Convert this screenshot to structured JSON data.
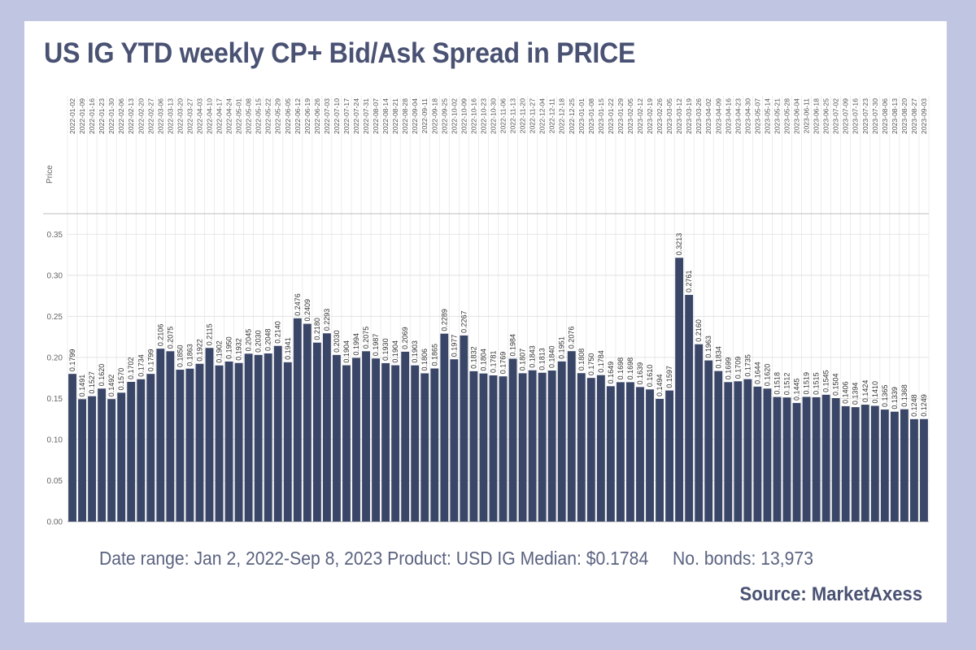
{
  "title": "US IG YTD weekly CP+ Bid/Ask Spread in PRICE",
  "footer": {
    "date_range": "Date range: Jan 2, 2022-Sep 8, 2023",
    "product": "Product: USD IG",
    "median": "Median: $0.1784",
    "bonds": "No. bonds: 13,973"
  },
  "source": "Source: MarketAxess",
  "colors": {
    "bar": "#3a4668",
    "background": "#c0c6e2",
    "title": "#4a5273"
  },
  "chart_data": {
    "type": "bar",
    "ylabel": "Price",
    "ylim": [
      0,
      0.375
    ],
    "yticks": [
      "0.00",
      "0.05",
      "0.10",
      "0.15",
      "0.20",
      "0.25",
      "0.30",
      "0.35"
    ],
    "grid": true,
    "categories": [
      "2022-01-02",
      "2022-01-09",
      "2022-01-16",
      "2022-01-23",
      "2022-01-30",
      "2022-02-06",
      "2022-02-13",
      "2022-02-20",
      "2022-02-27",
      "2022-03-06",
      "2022-03-13",
      "2022-03-20",
      "2022-03-27",
      "2022-04-03",
      "2022-04-10",
      "2022-04-17",
      "2022-04-24",
      "2022-05-01",
      "2022-05-08",
      "2022-05-15",
      "2022-05-22",
      "2022-05-29",
      "2022-06-05",
      "2022-06-12",
      "2022-06-19",
      "2022-06-26",
      "2022-07-03",
      "2022-07-10",
      "2022-07-17",
      "2022-07-24",
      "2022-07-31",
      "2022-08-07",
      "2022-08-14",
      "2022-08-21",
      "2022-08-28",
      "2022-09-04",
      "2022-09-11",
      "2022-09-18",
      "2022-09-25",
      "2022-10-02",
      "2022-10-09",
      "2022-10-16",
      "2022-10-23",
      "2022-10-30",
      "2022-11-06",
      "2022-11-13",
      "2022-11-20",
      "2022-11-27",
      "2022-12-04",
      "2022-12-11",
      "2022-12-18",
      "2022-12-25",
      "2023-01-01",
      "2023-01-08",
      "2023-01-15",
      "2023-01-22",
      "2023-01-29",
      "2023-02-05",
      "2023-02-12",
      "2023-02-19",
      "2023-02-26",
      "2023-03-05",
      "2023-03-12",
      "2023-03-19",
      "2023-03-26",
      "2023-04-02",
      "2023-04-09",
      "2023-04-16",
      "2023-04-23",
      "2023-04-30",
      "2023-05-07",
      "2023-05-14",
      "2023-05-21",
      "2023-05-28",
      "2023-06-04",
      "2023-06-11",
      "2023-06-18",
      "2023-06-25",
      "2023-07-02",
      "2023-07-09",
      "2023-07-16",
      "2023-07-23",
      "2023-07-30",
      "2023-08-06",
      "2023-08-13",
      "2023-08-20",
      "2023-08-27",
      "2023-09-03"
    ],
    "values": [
      0.1799,
      0.1491,
      0.1527,
      0.162,
      0.1492,
      0.157,
      0.1702,
      0.1734,
      0.1799,
      0.2106,
      0.2075,
      0.185,
      0.1863,
      0.1922,
      0.2115,
      0.1902,
      0.195,
      0.1932,
      0.2045,
      0.203,
      0.2048,
      0.214,
      0.1941,
      0.2476,
      0.2409,
      0.218,
      0.2293,
      0.203,
      0.1904,
      0.1994,
      0.2075,
      0.1987,
      0.193,
      0.1904,
      0.2069,
      0.1903,
      0.1806,
      0.1865,
      0.2289,
      0.1977,
      0.2267,
      0.1832,
      0.1804,
      0.1781,
      0.1769,
      0.1984,
      0.1807,
      0.1843,
      0.1813,
      0.184,
      0.1951,
      0.2076,
      0.1808,
      0.175,
      0.1784,
      0.1649,
      0.1698,
      0.1698,
      0.1639,
      0.161,
      0.1494,
      0.1597,
      0.3213,
      0.2761,
      0.216,
      0.1963,
      0.1834,
      0.1699,
      0.1709,
      0.1735,
      0.1644,
      0.162,
      0.1518,
      0.1512,
      0.1445,
      0.1519,
      0.1515,
      0.1545,
      0.1504,
      0.1406,
      0.1394,
      0.1424,
      0.141,
      0.1365,
      0.1339,
      0.1368,
      0.1248,
      0.1249
    ],
    "value_labels": [
      "0.1799",
      "0.1491",
      "0.1527",
      "0.1620",
      "0.1492",
      "0.1570",
      "0.1702",
      "0.1734",
      "0.1799",
      "0.2106",
      "0.2075",
      "0.1850",
      "0.1863",
      "0.1922",
      "0.2115",
      "0.1902",
      "0.1950",
      "0.1932",
      "0.2045",
      "0.2030",
      "0.2048",
      "0.2140",
      "0.1941",
      "0.2476",
      "0.2409",
      "0.2180",
      "0.2293",
      "0.2030",
      "0.1904",
      "0.1994",
      "0.2075",
      "0.1987",
      "0.1930",
      "0.1904",
      "0.2069",
      "0.1903",
      "0.1806",
      "0.1865",
      "0.2289",
      "0.1977",
      "0.2267",
      "0.1832",
      "0.1804",
      "0.1781",
      "0.1769",
      "0.1984",
      "0.1807",
      "0.1843",
      "0.1813",
      "0.1840",
      "0.1951",
      "0.2076",
      "0.1808",
      "0.1750",
      "0.1784",
      "0.1649",
      "0.1698",
      "0.1698",
      "0.1639",
      "0.1610",
      "0.1494",
      "0.1597",
      "0.3213",
      "0.2761",
      "0.2160",
      "0.1963",
      "0.1834",
      "0.1699",
      "0.1709",
      "0.1735",
      "0.1644",
      "0.1620",
      "0.1518",
      "0.1512",
      "0.1445",
      "0.1519",
      "0.1515",
      "0.1545",
      "0.1504",
      "0.1406",
      "0.1394",
      "0.1424",
      "0.1410",
      "0.1365",
      "0.1339",
      "0.1368",
      "0.1248",
      "0.1249"
    ]
  }
}
